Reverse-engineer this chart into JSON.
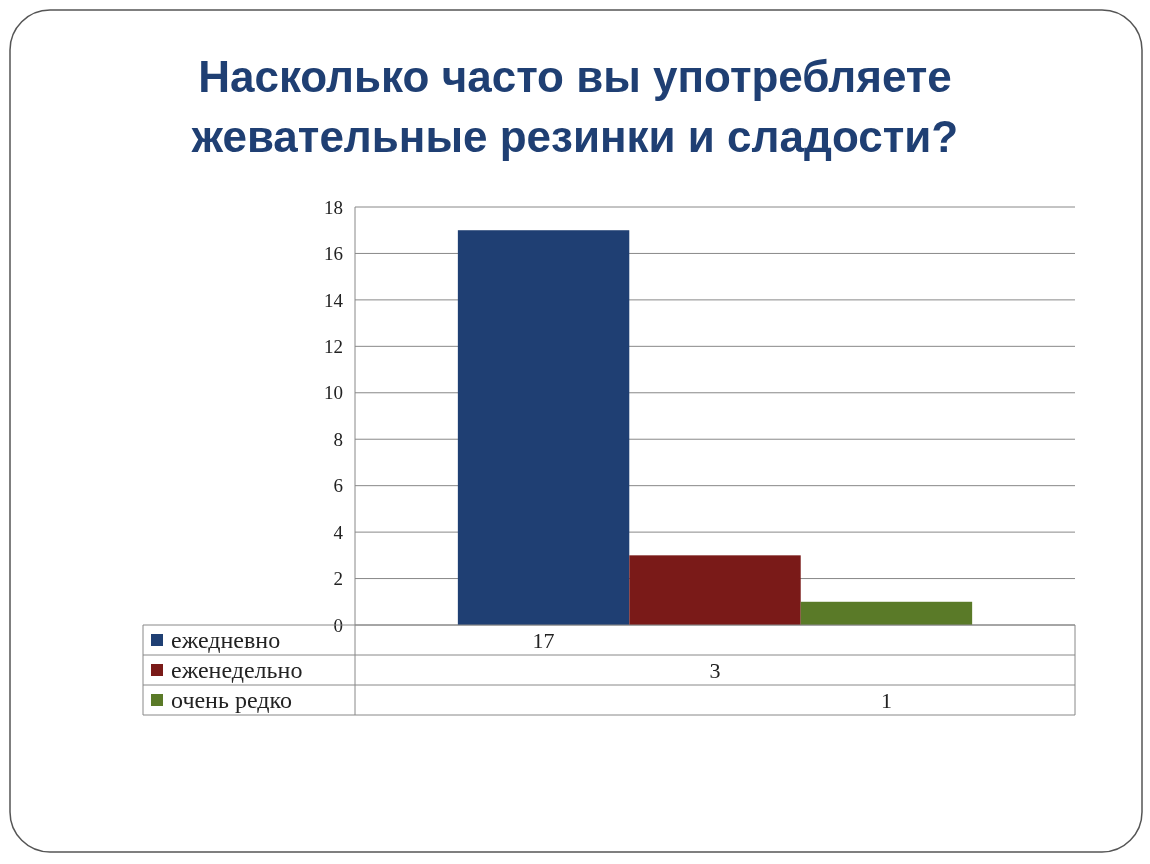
{
  "chart_data": {
    "type": "bar",
    "title": "Насколько часто вы употребляете жевательные резинки и сладости?",
    "categories": [
      null
    ],
    "series": [
      {
        "name": "ежедневно",
        "color": "#1f3f73",
        "values": [
          17
        ]
      },
      {
        "name": "еженедельно",
        "color": "#7a1a18",
        "values": [
          3
        ]
      },
      {
        "name": "очень редко",
        "color": "#5a7a28",
        "values": [
          1
        ]
      }
    ],
    "ylim": [
      0,
      18
    ],
    "yticks": [
      0,
      2,
      4,
      6,
      8,
      10,
      12,
      14,
      16,
      18
    ],
    "grid": "y",
    "legend": "bottom left",
    "data_labels": true
  }
}
